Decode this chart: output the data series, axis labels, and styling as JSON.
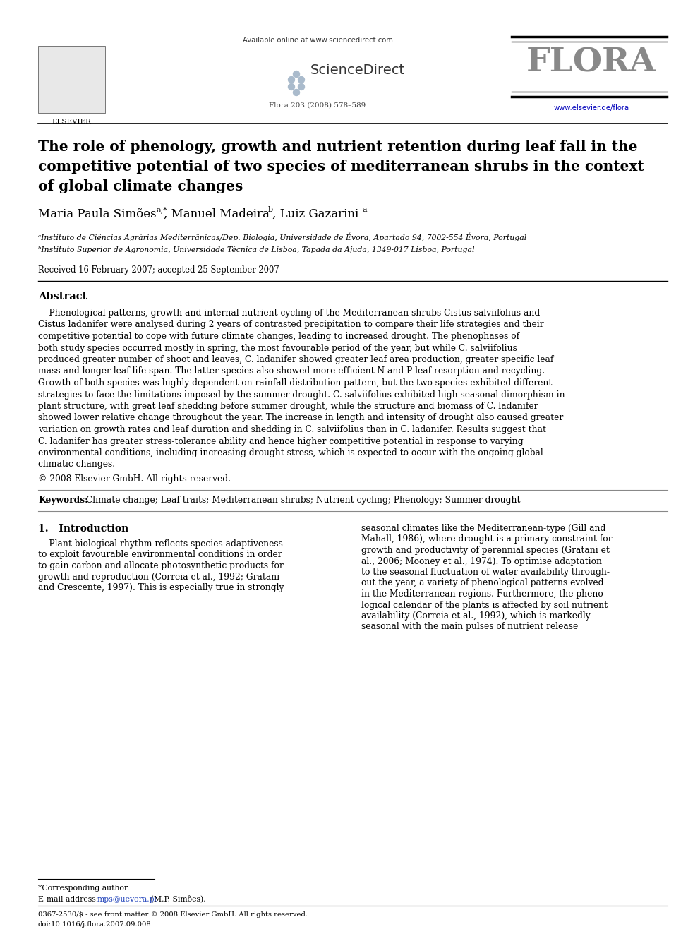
{
  "bg_color": "#ffffff",
  "elsevier_text": "ELSEVIER",
  "available_online": "Available online at www.sciencedirect.com",
  "sciencedirect_text": "ScienceDirect",
  "flora_text": "FLORA",
  "journal_info": "Flora 203 (2008) 578–589",
  "website": "www.elsevier.de/flora",
  "title_line1": "The role of phenology, growth and nutrient retention during leaf fall in the",
  "title_line2": "competitive potential of two species of mediterranean shrubs in the context",
  "title_line3": "of global climate changes",
  "affil_a": "ᵃInstituto de Ciências Agrárias Mediterrânicas/Dep. Biologia, Universidade de Évora, Apartado 94, 7002-554 Évora, Portugal",
  "affil_b": "ᵇInstituto Superior de Agronomia, Universidade Técnica de Lisboa, Tapada da Ajuda, 1349-017 Lisboa, Portugal",
  "received": "Received 16 February 2007; accepted 25 September 2007",
  "abstract_title": "Abstract",
  "copyright": "© 2008 Elsevier GmbH. All rights reserved.",
  "keywords_label": "Keywords:",
  "keywords": "Climate change; Leaf traits; Mediterranean shrubs; Nutrient cycling; Phenology; Summer drought",
  "section1_title": "1.   Introduction",
  "footnote_star": "*Corresponding author.",
  "footnote_email_label": "E-mail address: ",
  "footnote_email": "mps@uevora.pt",
  "footnote_email_name": " (M.P. Simões).",
  "footer_issn": "0367-2530/$ - see front matter © 2008 Elsevier GmbH. All rights reserved.",
  "footer_doi": "doi:10.1016/j.flora.2007.09.008",
  "abstract_lines": [
    "    Phenological patterns, growth and internal nutrient cycling of the Mediterranean shrubs Cistus salviifolius and",
    "Cistus ladanifer were analysed during 2 years of contrasted precipitation to compare their life strategies and their",
    "competitive potential to cope with future climate changes, leading to increased drought. The phenophases of",
    "both study species occurred mostly in spring, the most favourable period of the year, but while C. salviifolius",
    "produced greater number of shoot and leaves, C. ladanifer showed greater leaf area production, greater specific leaf",
    "mass and longer leaf life span. The latter species also showed more efficient N and P leaf resorption and recycling.",
    "Growth of both species was highly dependent on rainfall distribution pattern, but the two species exhibited different",
    "strategies to face the limitations imposed by the summer drought. C. salviifolius exhibited high seasonal dimorphism in",
    "plant structure, with great leaf shedding before summer drought, while the structure and biomass of C. ladanifer",
    "showed lower relative change throughout the year. The increase in length and intensity of drought also caused greater",
    "variation on growth rates and leaf duration and shedding in C. salviifolius than in C. ladanifer. Results suggest that",
    "C. ladanifer has greater stress-tolerance ability and hence higher competitive potential in response to varying",
    "environmental conditions, including increasing drought stress, which is expected to occur with the ongoing global",
    "climatic changes."
  ],
  "intro_left_lines": [
    "    Plant biological rhythm reflects species adaptiveness",
    "to exploit favourable environmental conditions in order",
    "to gain carbon and allocate photosynthetic products for",
    "growth and reproduction (Correia et al., 1992; Gratani",
    "and Crescente, 1997). This is especially true in strongly"
  ],
  "intro_right_lines": [
    "seasonal climates like the Mediterranean-type (Gill and",
    "Mahall, 1986), where drought is a primary constraint for",
    "growth and productivity of perennial species (Gratani et",
    "al., 2006; Mooney et al., 1974). To optimise adaptation",
    "to the seasonal fluctuation of water availability through-",
    "out the year, a variety of phenological patterns evolved",
    "in the Mediterranean regions. Furthermore, the pheno-",
    "logical calendar of the plants is affected by soil nutrient",
    "availability (Correia et al., 1992), which is markedly",
    "seasonal with the main pulses of nutrient release"
  ]
}
